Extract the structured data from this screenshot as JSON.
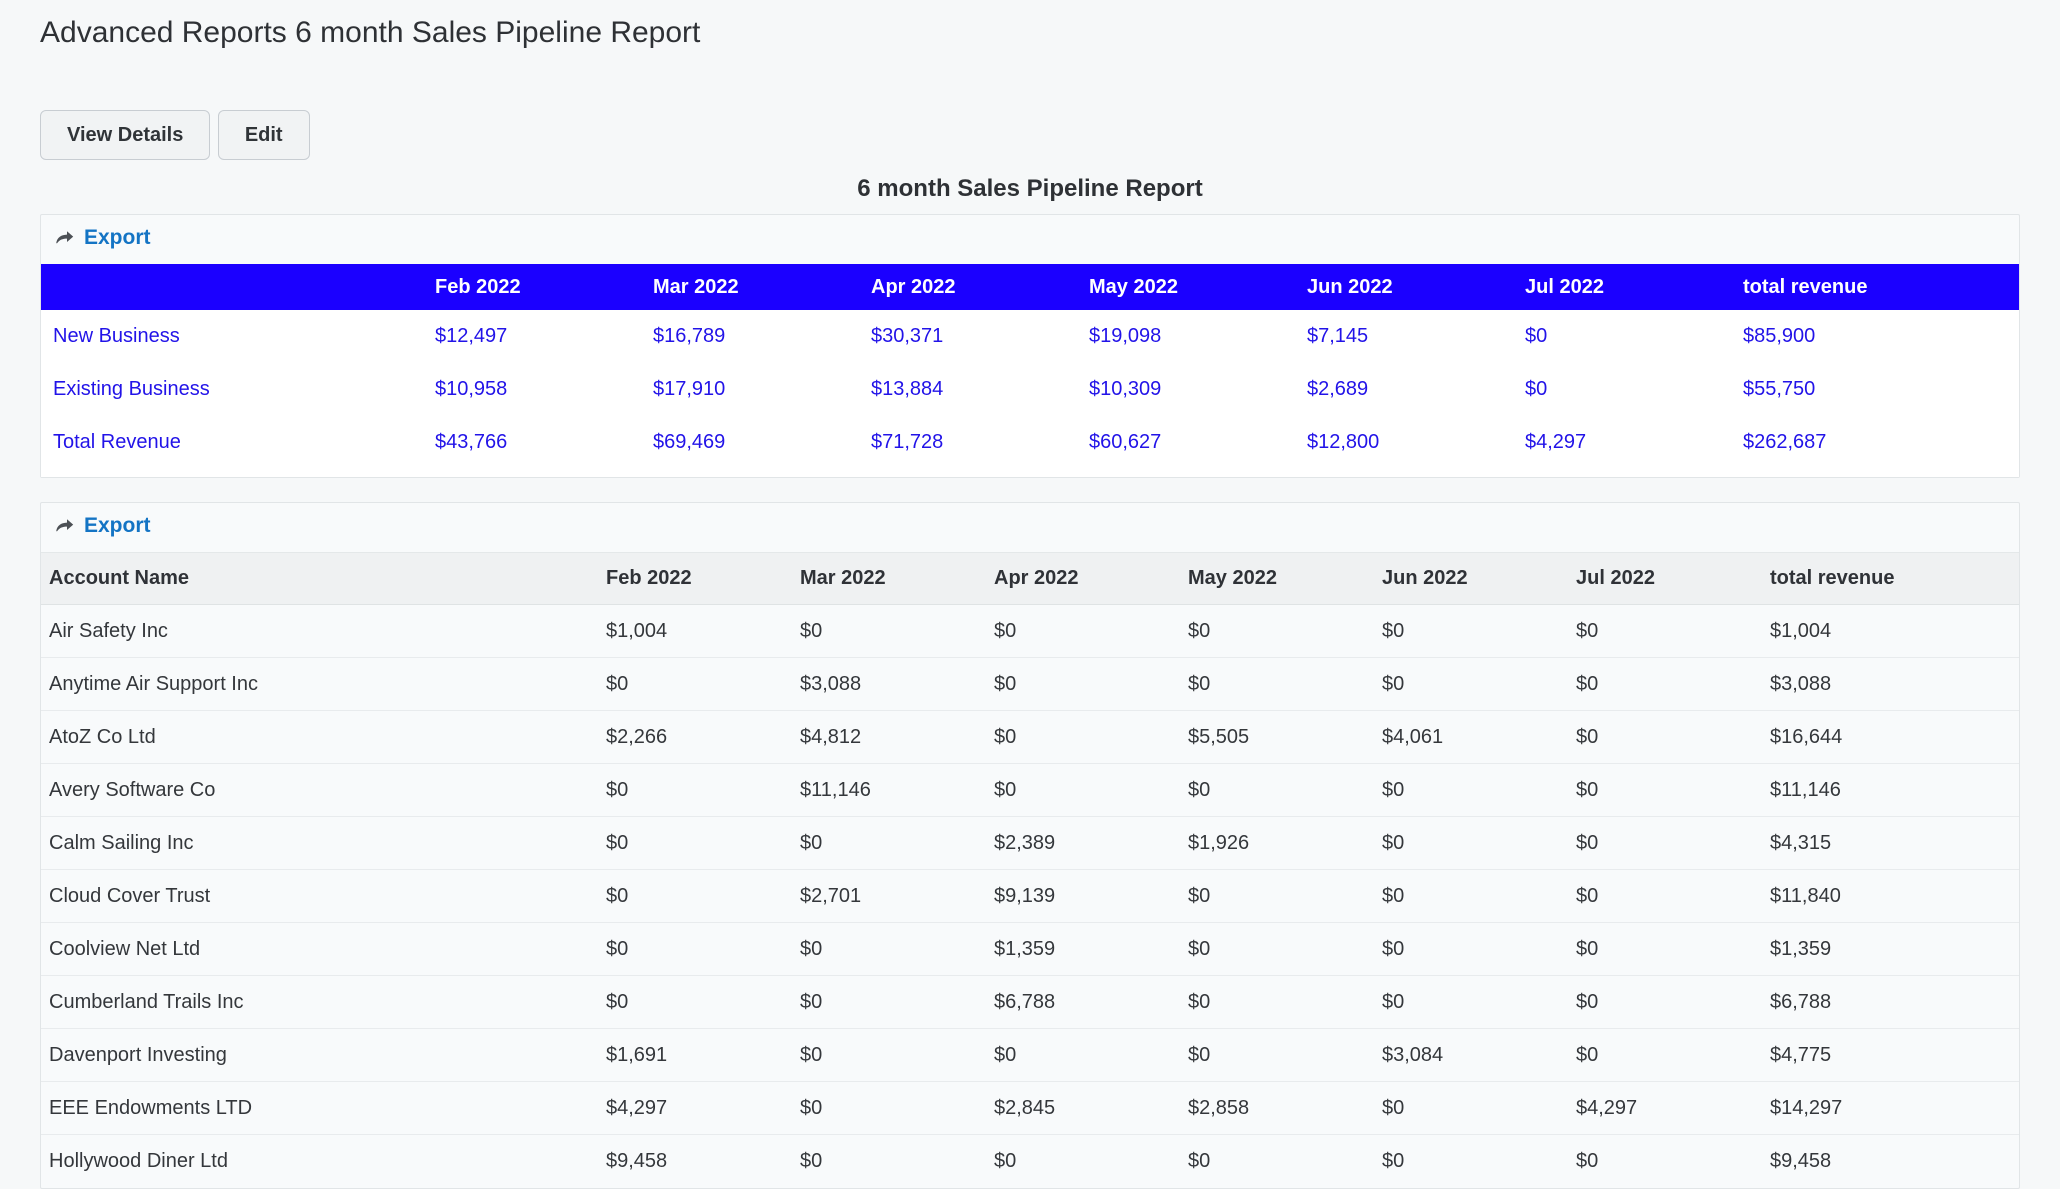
{
  "page": {
    "title": "Advanced Reports 6 month Sales Pipeline Report"
  },
  "toolbar": {
    "view_details": "View Details",
    "edit": "Edit"
  },
  "report": {
    "heading": "6 month Sales Pipeline Report"
  },
  "export": {
    "label": "Export"
  },
  "colors": {
    "summary_header_bg": "#1b00ff",
    "summary_text": "#2213e8",
    "export_link": "#1474c4",
    "accounts_header_bg": "#eff1f2",
    "page_bg": "#f6f8f9"
  },
  "summary_table": {
    "columns": [
      "",
      "Feb 2022",
      "Mar 2022",
      "Apr 2022",
      "May 2022",
      "Jun 2022",
      "Jul 2022",
      "total revenue"
    ],
    "rows": [
      {
        "label": "New Business",
        "values": [
          "$12,497",
          "$16,789",
          "$30,371",
          "$19,098",
          "$7,145",
          "$0",
          "$85,900"
        ]
      },
      {
        "label": "Existing Business",
        "values": [
          "$10,958",
          "$17,910",
          "$13,884",
          "$10,309",
          "$2,689",
          "$0",
          "$55,750"
        ]
      },
      {
        "label": "Total Revenue",
        "values": [
          "$43,766",
          "$69,469",
          "$71,728",
          "$60,627",
          "$12,800",
          "$4,297",
          "$262,687"
        ]
      }
    ]
  },
  "accounts_table": {
    "columns": [
      "Account Name",
      "Feb 2022",
      "Mar 2022",
      "Apr 2022",
      "May 2022",
      "Jun 2022",
      "Jul 2022",
      "total revenue"
    ],
    "rows": [
      {
        "label": "Air Safety Inc",
        "values": [
          "$1,004",
          "$0",
          "$0",
          "$0",
          "$0",
          "$0",
          "$1,004"
        ]
      },
      {
        "label": "Anytime Air Support Inc",
        "values": [
          "$0",
          "$3,088",
          "$0",
          "$0",
          "$0",
          "$0",
          "$3,088"
        ]
      },
      {
        "label": "AtoZ Co Ltd",
        "values": [
          "$2,266",
          "$4,812",
          "$0",
          "$5,505",
          "$4,061",
          "$0",
          "$16,644"
        ]
      },
      {
        "label": "Avery Software Co",
        "values": [
          "$0",
          "$11,146",
          "$0",
          "$0",
          "$0",
          "$0",
          "$11,146"
        ]
      },
      {
        "label": "Calm Sailing Inc",
        "values": [
          "$0",
          "$0",
          "$2,389",
          "$1,926",
          "$0",
          "$0",
          "$4,315"
        ]
      },
      {
        "label": "Cloud Cover Trust",
        "values": [
          "$0",
          "$2,701",
          "$9,139",
          "$0",
          "$0",
          "$0",
          "$11,840"
        ]
      },
      {
        "label": "Coolview Net Ltd",
        "values": [
          "$0",
          "$0",
          "$1,359",
          "$0",
          "$0",
          "$0",
          "$1,359"
        ]
      },
      {
        "label": "Cumberland Trails Inc",
        "values": [
          "$0",
          "$0",
          "$6,788",
          "$0",
          "$0",
          "$0",
          "$6,788"
        ]
      },
      {
        "label": "Davenport Investing",
        "values": [
          "$1,691",
          "$0",
          "$0",
          "$0",
          "$3,084",
          "$0",
          "$4,775"
        ]
      },
      {
        "label": "EEE Endowments LTD",
        "values": [
          "$4,297",
          "$0",
          "$2,845",
          "$2,858",
          "$0",
          "$4,297",
          "$14,297"
        ]
      },
      {
        "label": "Hollywood Diner Ltd",
        "values": [
          "$9,458",
          "$0",
          "$0",
          "$0",
          "$0",
          "$0",
          "$9,458"
        ]
      }
    ]
  }
}
